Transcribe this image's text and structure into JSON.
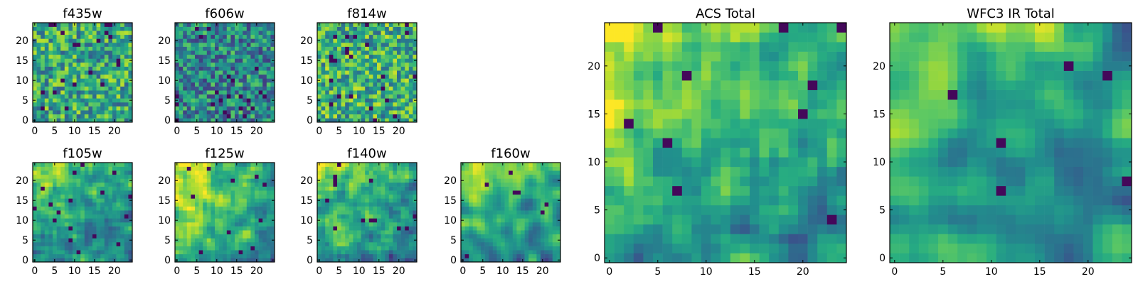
{
  "chart_data": {
    "type": "heatmap",
    "colormap": "viridis",
    "panels": [
      {
        "title": "f435w",
        "size": 25,
        "xticks": [
          0,
          5,
          10,
          15,
          20
        ],
        "yticks": [
          0,
          5,
          10,
          15,
          20
        ],
        "seed": 11,
        "smooth": 0,
        "bias": 0.05,
        "dark": 0.04
      },
      {
        "title": "f606w",
        "size": 25,
        "xticks": [
          0,
          5,
          10,
          15,
          20
        ],
        "yticks": [
          0,
          5,
          10,
          15,
          20
        ],
        "seed": 23,
        "smooth": 0,
        "bias": -0.08,
        "dark": 0.03
      },
      {
        "title": "f814w",
        "size": 25,
        "xticks": [
          0,
          5,
          10,
          15,
          20
        ],
        "yticks": [
          0,
          5,
          10,
          15,
          20
        ],
        "seed": 37,
        "smooth": 0,
        "bias": 0.08,
        "dark": 0.04
      },
      {
        "title": "f105w",
        "size": 25,
        "xticks": [
          0,
          5,
          10,
          15,
          20
        ],
        "yticks": [
          0,
          5,
          10,
          15,
          20
        ],
        "seed": 41,
        "smooth": 1,
        "bias": 0.0,
        "dark": 0.02
      },
      {
        "title": "f125w",
        "size": 25,
        "xticks": [
          0,
          5,
          10,
          15,
          20
        ],
        "yticks": [
          0,
          5,
          10,
          15,
          20
        ],
        "seed": 53,
        "smooth": 1,
        "bias": 0.05,
        "dark": 0.02
      },
      {
        "title": "f140w",
        "size": 25,
        "xticks": [
          0,
          5,
          10,
          15,
          20
        ],
        "yticks": [
          0,
          5,
          10,
          15,
          20
        ],
        "seed": 67,
        "smooth": 1,
        "bias": -0.02,
        "dark": 0.02
      },
      {
        "title": "f160w",
        "size": 25,
        "xticks": [
          0,
          5,
          10,
          15,
          20
        ],
        "yticks": [
          0,
          5,
          10,
          15,
          20
        ],
        "seed": 79,
        "smooth": 2,
        "bias": 0.0,
        "dark": 0.02
      },
      {
        "title": "ACS Total",
        "size": 25,
        "xticks": [
          0,
          5,
          10,
          15,
          20
        ],
        "yticks": [
          0,
          5,
          10,
          15,
          20
        ],
        "seed": 91,
        "smooth": 1,
        "bias": 0.05,
        "dark": 0.015
      },
      {
        "title": "WFC3 IR Total",
        "size": 25,
        "xticks": [
          0,
          5,
          10,
          15,
          20
        ],
        "yticks": [
          0,
          5,
          10,
          15,
          20
        ],
        "seed": 103,
        "smooth": 2,
        "bias": 0.0,
        "dark": 0.02
      }
    ]
  }
}
